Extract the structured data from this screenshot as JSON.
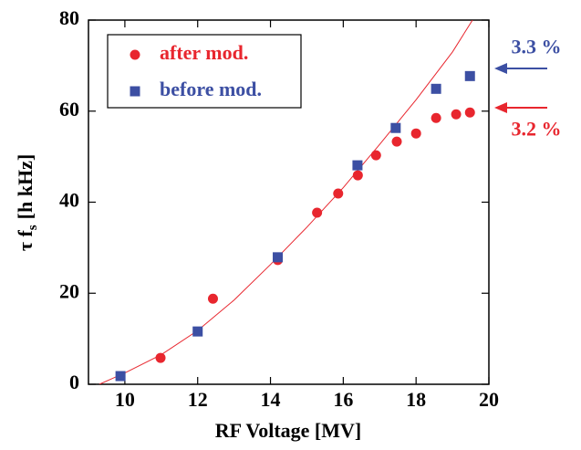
{
  "chart_data": {
    "type": "scatter",
    "xlabel": "RF Voltage [MV]",
    "ylabel": {
      "main": "τ f",
      "sub": "s",
      "rest": "[h kHz]"
    },
    "xlim": [
      9,
      20
    ],
    "ylim": [
      0,
      80
    ],
    "xticks": [
      10,
      12,
      14,
      16,
      18,
      20
    ],
    "yticks": [
      0,
      20,
      40,
      60,
      80
    ],
    "series": [
      {
        "name": "after mod.",
        "color": "#e8262e",
        "marker": "circle",
        "x": [
          10.98,
          12.42,
          14.2,
          15.28,
          15.86,
          16.4,
          16.9,
          17.47,
          18.0,
          18.55,
          19.1,
          19.48
        ],
        "values": [
          5.8,
          18.8,
          27.3,
          37.7,
          41.9,
          45.9,
          50.3,
          53.3,
          55.1,
          58.5,
          59.3,
          59.7
        ]
      },
      {
        "name": "before mod.",
        "color": "#3c4fa3",
        "marker": "square",
        "x": [
          9.88,
          12.0,
          14.2,
          16.39,
          17.44,
          18.55,
          19.48
        ],
        "values": [
          1.8,
          11.6,
          27.9,
          48.1,
          56.3,
          64.9,
          67.7
        ]
      }
    ],
    "fit_curve": {
      "color": "#e8262e",
      "x": [
        9.3,
        10,
        11,
        12,
        13,
        14,
        15,
        16,
        17,
        18,
        19,
        19.55
      ],
      "values": [
        0,
        2.5,
        6.5,
        11.8,
        18.5,
        26.3,
        34.5,
        43.2,
        52.7,
        62.5,
        73,
        80
      ]
    },
    "annotations": [
      {
        "text": "3.3 %",
        "color": "#3c4fa3",
        "y": 69.3
      },
      {
        "text": "3.2 %",
        "color": "#e8262e",
        "y": 60.7
      }
    ]
  }
}
